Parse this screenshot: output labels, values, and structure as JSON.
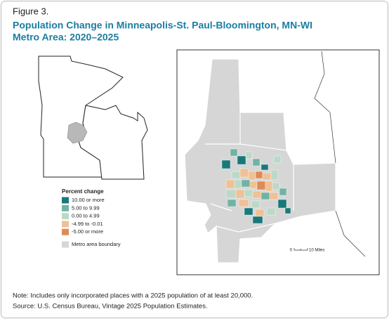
{
  "header": {
    "figure": "Figure 3.",
    "title_lines": [
      "Population Change in Minneapolis-St. Paul-Bloomington, MN-WI",
      "Metro Area: 2020–2025"
    ]
  },
  "legend": {
    "title": "Percent change",
    "items": [
      {
        "label": "10.00 or more",
        "color": "#19797a"
      },
      {
        "label": "5.00 to 9.99",
        "color": "#6fb3a4"
      },
      {
        "label": "0.00 to 4.99",
        "color": "#bcd9c8"
      },
      {
        "label": "-4.99 to -0.01",
        "color": "#eec196"
      },
      {
        "label": "-5.00 or more",
        "color": "#df8a55"
      }
    ],
    "boundary": {
      "label": "Metro area boundary",
      "color": "#d6d6d6"
    }
  },
  "scale_bar": {
    "start": "0",
    "end": "10 Miles"
  },
  "footer": {
    "note": "Note: Includes only incorporated places with a 2025 population of at least 20,000.",
    "source": "Source: U.S. Census Bureau, Vintage 2025 Population Estimates."
  }
}
